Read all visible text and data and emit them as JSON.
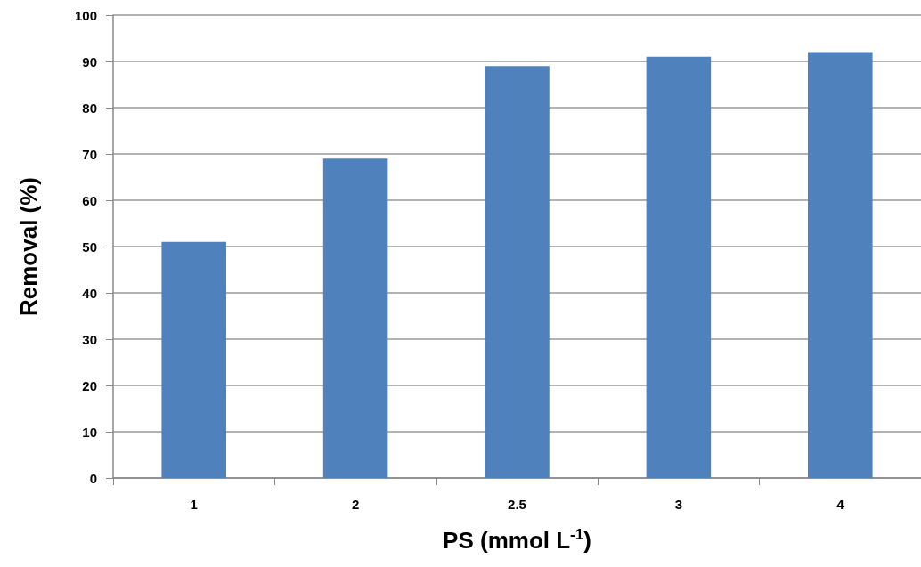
{
  "chart_data": {
    "type": "bar",
    "xlabel": "PS (mmol L$^{-1}$)",
    "ylabel": "Removal (%)",
    "categories": [
      "1",
      "2",
      "2.5",
      "3",
      "4"
    ],
    "values": [
      51,
      69,
      89,
      91,
      92
    ],
    "color": "#4f81bd",
    "ylim": [
      0,
      100
    ],
    "yticks": [
      0,
      10,
      20,
      30,
      40,
      50,
      60,
      70,
      80,
      90,
      100
    ],
    "grid": "y"
  }
}
